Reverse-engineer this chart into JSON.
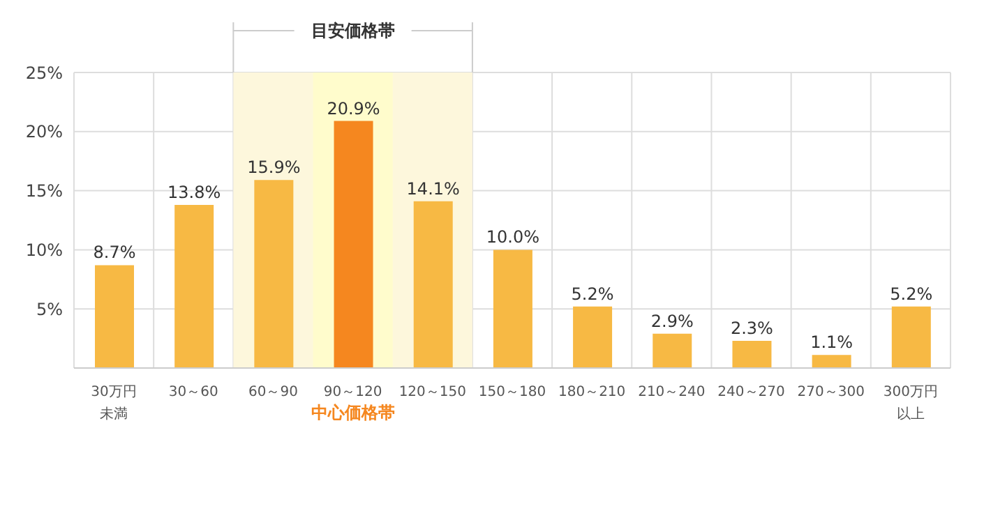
{
  "chart_data": {
    "type": "bar",
    "categories": [
      "30万円未満",
      "30～60",
      "60～90",
      "90～120",
      "120～150",
      "150～180",
      "180～210",
      "210～240",
      "240～270",
      "270～300",
      "300万円以上"
    ],
    "values": [
      8.7,
      13.8,
      15.9,
      20.9,
      14.1,
      10.0,
      5.2,
      2.9,
      2.3,
      1.1,
      5.2
    ],
    "value_labels": [
      "8.7%",
      "13.8%",
      "15.9%",
      "20.9%",
      "14.1%",
      "10.0%",
      "5.2%",
      "2.9%",
      "2.3%",
      "1.1%",
      "5.2%"
    ],
    "colors": [
      "#f7b944",
      "#f7b944",
      "#f7b944",
      "#f5871f",
      "#f7b944",
      "#f7b944",
      "#f7b944",
      "#f7b944",
      "#f7b944",
      "#f7b944",
      "#f7b944"
    ],
    "ylim": [
      0,
      25
    ],
    "yticks": [
      {
        "value": 5,
        "label": "5%"
      },
      {
        "value": 10,
        "label": "10%"
      },
      {
        "value": 15,
        "label": "15%"
      },
      {
        "value": 20,
        "label": "20%"
      },
      {
        "value": 25,
        "label": "25%"
      }
    ],
    "bands": [
      {
        "axis": "x",
        "from": "60～90",
        "to": "120～150",
        "label": "目安価格帯",
        "color": "#fdf7dc"
      },
      {
        "axis": "x",
        "from": "90～120",
        "to": "90～120",
        "label": "中心価格帯",
        "color": "#fffccc"
      }
    ],
    "grid": true,
    "legend": false
  }
}
